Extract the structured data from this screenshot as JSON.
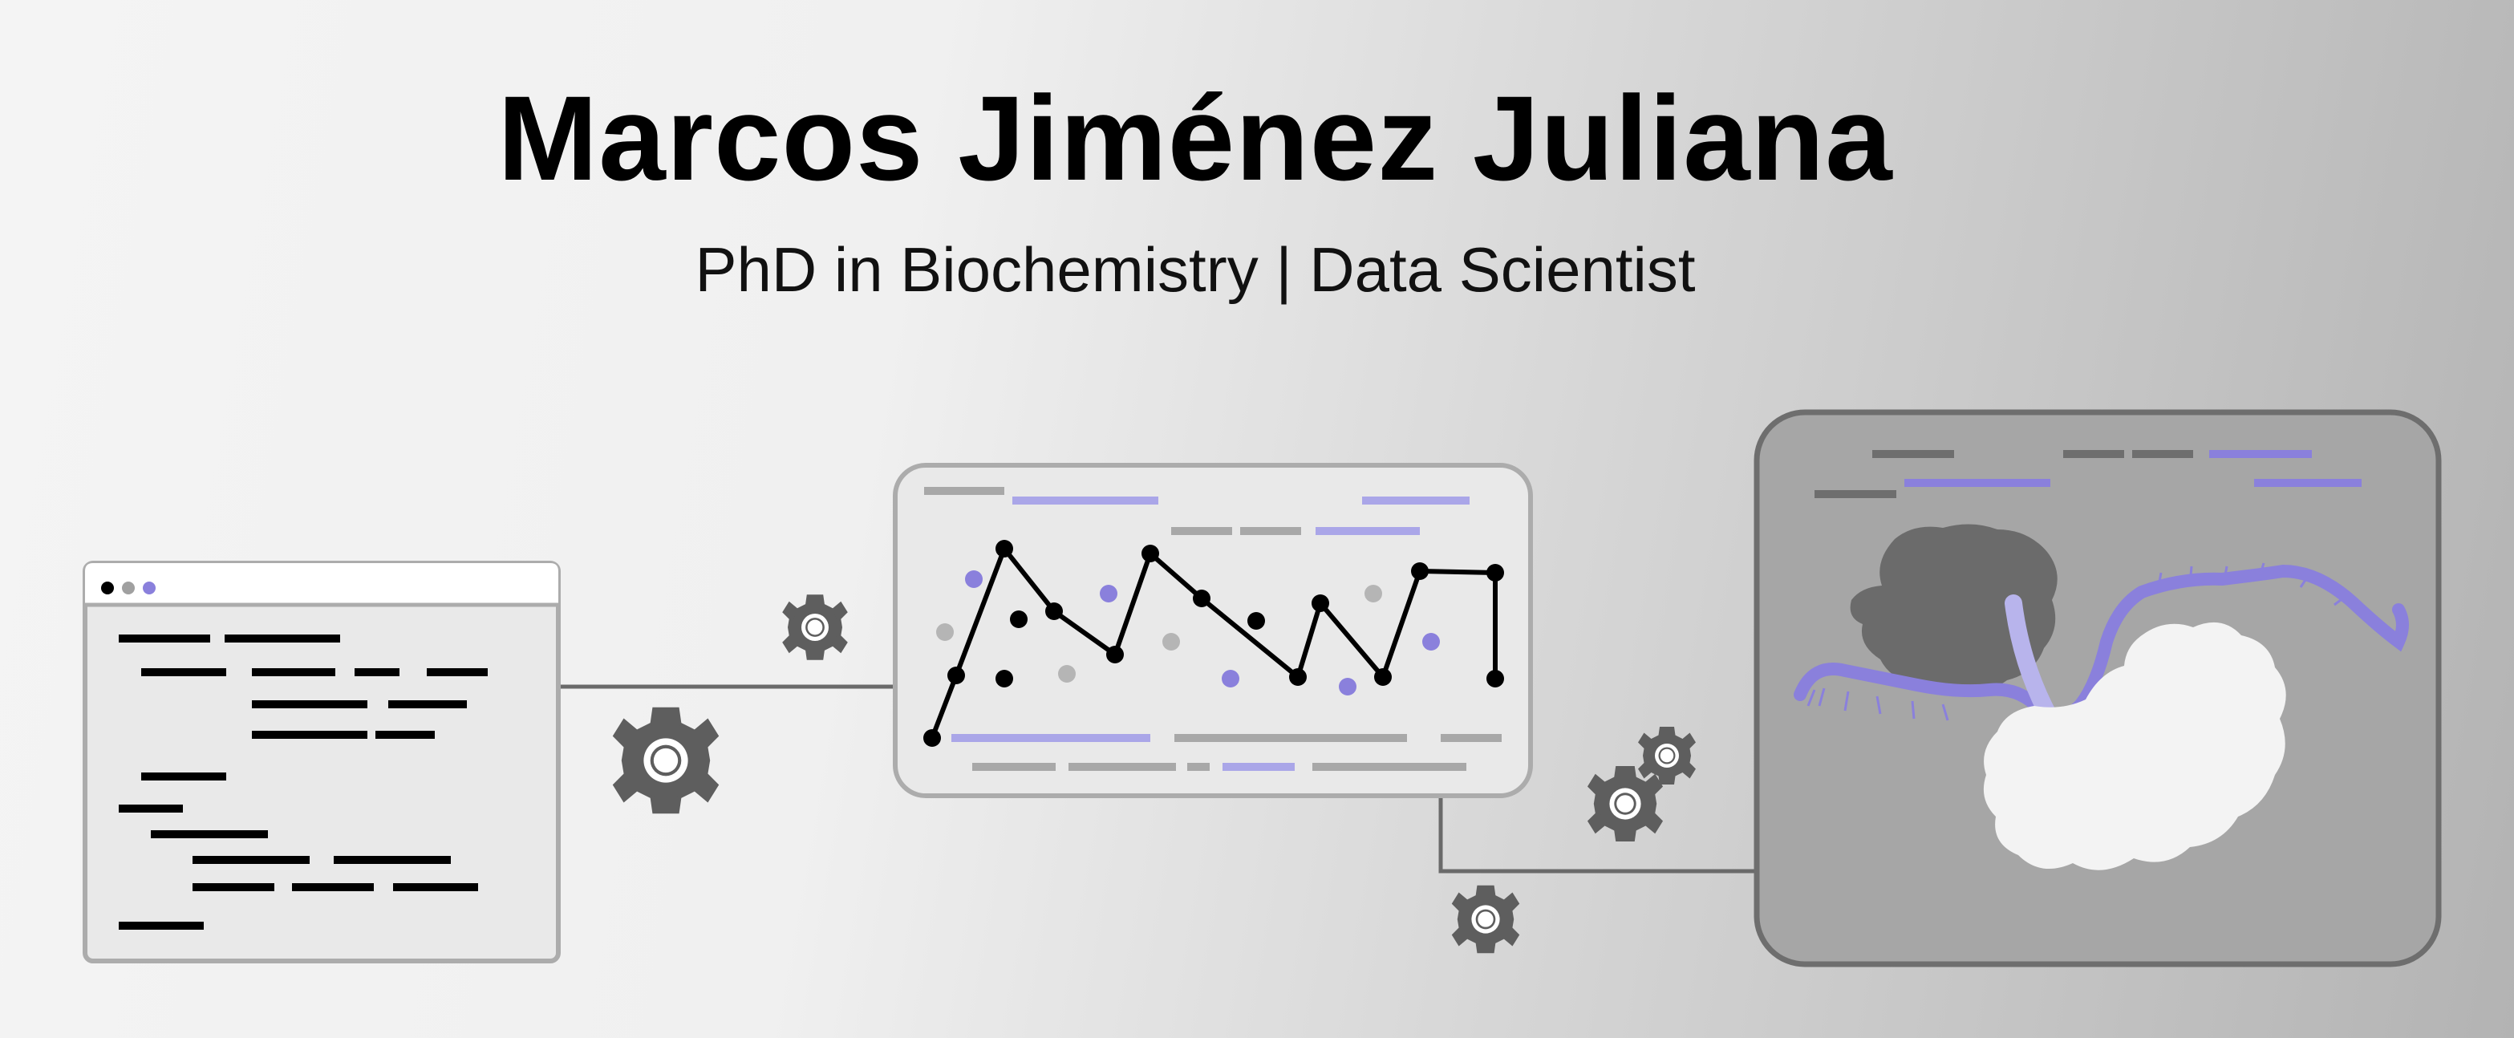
{
  "header": {
    "name": "Marcos Jiménez Juliana",
    "subtitle": "PhD in Biochemistry | Data Scientist"
  },
  "illustration": {
    "panels": [
      "code-editor",
      "data-chart",
      "molecular-structure"
    ],
    "gear_icons": 5,
    "colors": {
      "accent": "#8a80dc",
      "accent_light": "#aaa6e8",
      "gear": "#5e5e5e",
      "panel_border": "#acacac",
      "connector": "#6a6a6a",
      "dark_text": "#000000",
      "gray_bar": "#a8a8a8"
    }
  }
}
